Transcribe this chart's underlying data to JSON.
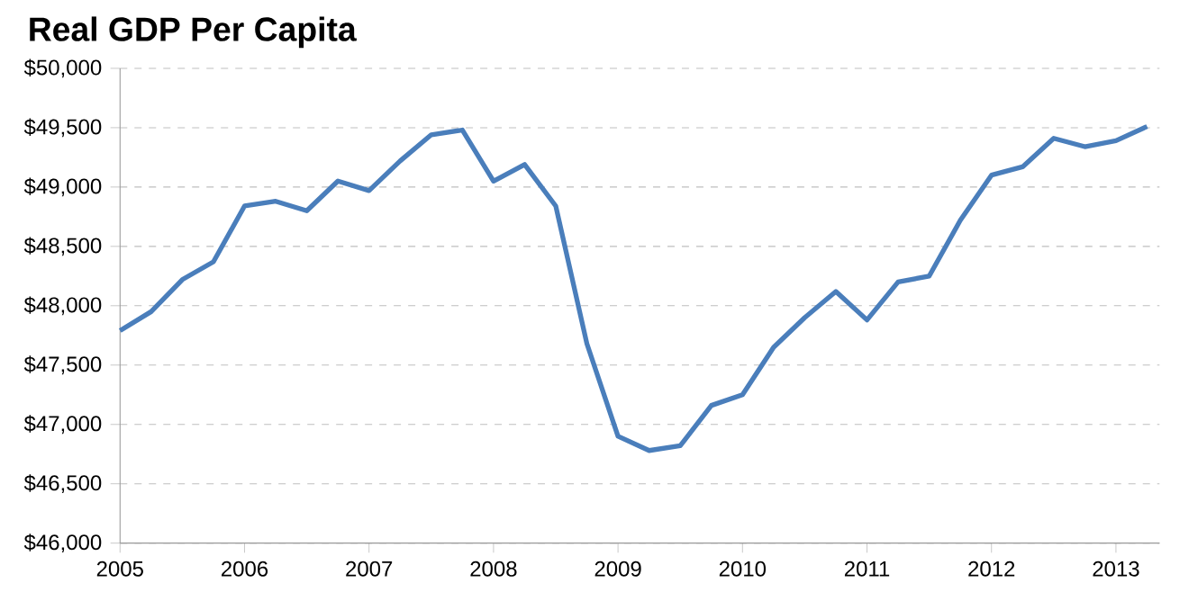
{
  "chart_data": {
    "type": "line",
    "title": "Real GDP Per Capita",
    "x": [
      2005,
      2005.25,
      2005.5,
      2005.75,
      2006,
      2006.25,
      2006.5,
      2006.75,
      2007,
      2007.25,
      2007.5,
      2007.75,
      2008,
      2008.25,
      2008.5,
      2008.75,
      2009,
      2009.25,
      2009.5,
      2009.75,
      2010,
      2010.25,
      2010.5,
      2010.75,
      2011,
      2011.25,
      2011.5,
      2011.75,
      2012,
      2012.25,
      2012.5,
      2012.75,
      2013,
      2013.25
    ],
    "series": [
      {
        "color": "#4a7ebb",
        "values": [
          47790,
          47950,
          48220,
          48370,
          48840,
          48880,
          48800,
          49050,
          48970,
          49220,
          49440,
          49480,
          49050,
          49190,
          48840,
          47680,
          46900,
          46780,
          46820,
          47160,
          47250,
          47650,
          47900,
          48120,
          47880,
          48200,
          48250,
          48720,
          49100,
          49170,
          49410,
          49340,
          49390,
          49510
        ]
      }
    ],
    "xlim": [
      2005,
      2013.35
    ],
    "xticks": [
      2005,
      2006,
      2007,
      2008,
      2009,
      2010,
      2011,
      2012,
      2013
    ],
    "ylim": [
      46000,
      50000
    ],
    "yticks": [
      {
        "value": 46000,
        "label": "$46,000"
      },
      {
        "value": 46500,
        "label": "$46,500"
      },
      {
        "value": 47000,
        "label": "$47,000"
      },
      {
        "value": 47500,
        "label": "$47,500"
      },
      {
        "value": 48000,
        "label": "$48,000"
      },
      {
        "value": 48500,
        "label": "$48,500"
      },
      {
        "value": 49000,
        "label": "$49,000"
      },
      {
        "value": 49500,
        "label": "$49,500"
      },
      {
        "value": 50000,
        "label": "$50,000"
      }
    ],
    "grid": "y",
    "marker": "none",
    "line_style": "solid"
  }
}
